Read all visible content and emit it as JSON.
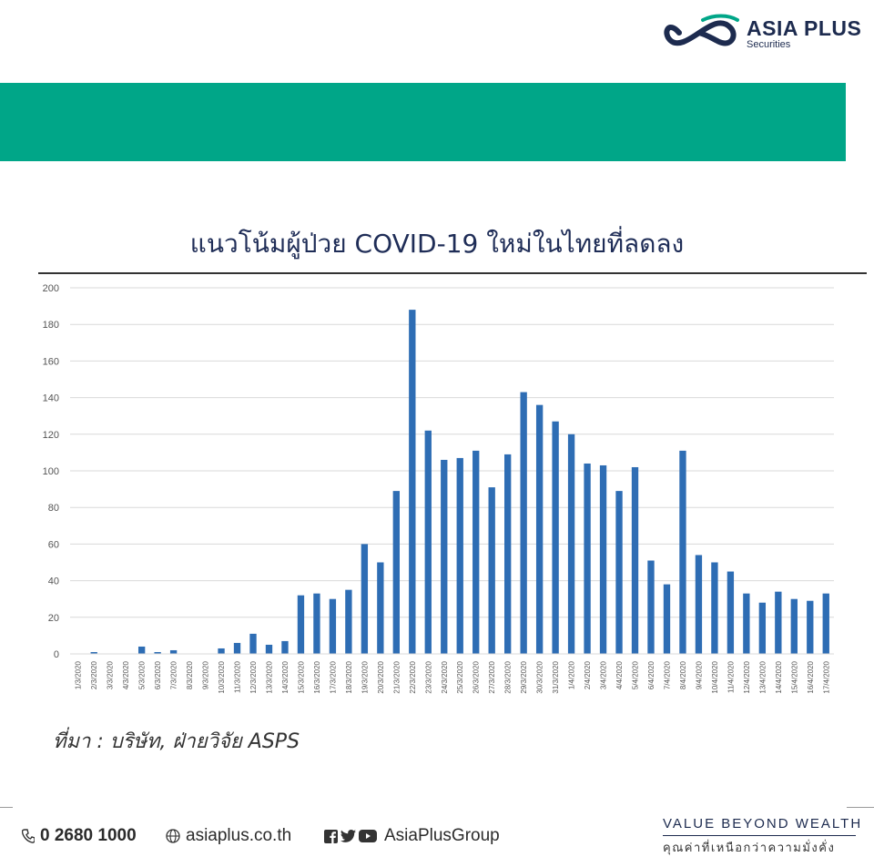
{
  "brand": {
    "name": "ASIA PLUS",
    "sub": "Securities",
    "color": "#1d2b4f",
    "accent": "#00a688"
  },
  "banner": {
    "color": "#00a688"
  },
  "chart_data": {
    "type": "bar",
    "title": "แนวโน้มผู้ป่วย COVID-19 ใหม่ในไทยที่ลดลง",
    "xlabel": "",
    "ylabel": "",
    "ylim": [
      0,
      200
    ],
    "yticks": [
      0,
      20,
      40,
      60,
      80,
      100,
      120,
      140,
      160,
      180,
      200
    ],
    "grid": true,
    "bar_color": "#2e6db4",
    "categories": [
      "1/3/2020",
      "2/3/2020",
      "3/3/2020",
      "4/3/2020",
      "5/3/2020",
      "6/3/2020",
      "7/3/2020",
      "8/3/2020",
      "9/3/2020",
      "10/3/2020",
      "11/3/2020",
      "12/3/2020",
      "13/3/2020",
      "14/3/2020",
      "15/3/2020",
      "16/3/2020",
      "17/3/2020",
      "18/3/2020",
      "19/3/2020",
      "20/3/2020",
      "21/3/2020",
      "22/3/2020",
      "23/3/2020",
      "24/3/2020",
      "25/3/2020",
      "26/3/2020",
      "27/3/2020",
      "28/3/2020",
      "29/3/2020",
      "30/3/2020",
      "31/3/2020",
      "1/4/2020",
      "2/4/2020",
      "3/4/2020",
      "4/4/2020",
      "5/4/2020",
      "6/4/2020",
      "7/4/2020",
      "8/4/2020",
      "9/4/2020",
      "10/4/2020",
      "11/4/2020",
      "12/4/2020",
      "13/4/2020",
      "14/4/2020",
      "15/4/2020",
      "16/4/2020",
      "17/4/2020"
    ],
    "values": [
      0,
      1,
      0,
      0,
      4,
      1,
      2,
      0,
      0,
      3,
      6,
      11,
      5,
      7,
      32,
      33,
      30,
      35,
      60,
      50,
      89,
      188,
      122,
      106,
      107,
      111,
      91,
      109,
      143,
      136,
      127,
      120,
      104,
      103,
      89,
      102,
      51,
      38,
      111,
      54,
      50,
      45,
      33,
      28,
      34,
      30,
      29,
      33
    ]
  },
  "source": "ที่มา :  บริษัท, ฝ่ายวิจัย ASPS",
  "footer": {
    "phone": "0 2680 1000",
    "website": "asiaplus.co.th",
    "social": "AsiaPlusGroup",
    "phone_icon": "phone-icon",
    "web_icon": "globe-icon",
    "social_icons": [
      "facebook-icon",
      "twitter-icon",
      "youtube-icon"
    ],
    "tagline": "VALUE  BEYOND  WEALTH",
    "tagline_th": "คุณค่าที่เหนือกว่าความมั่งคั่ง"
  }
}
